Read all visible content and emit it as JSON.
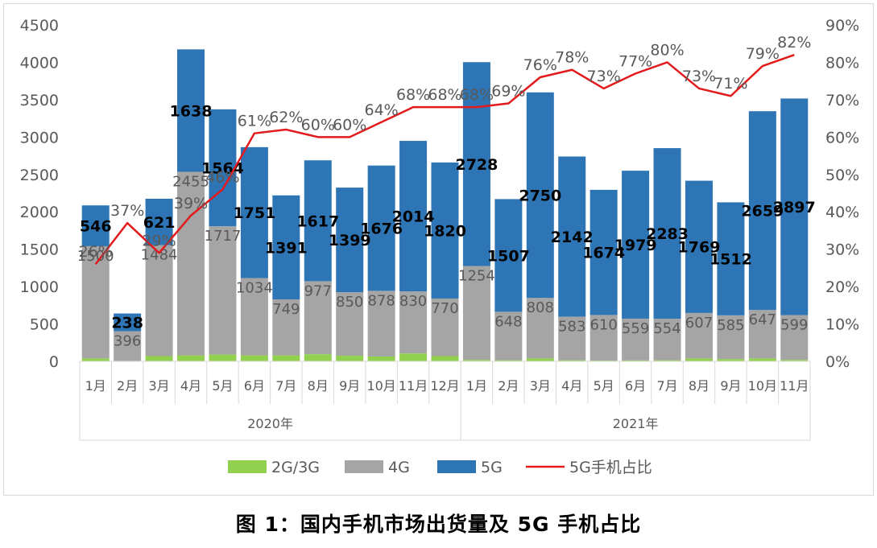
{
  "caption": "图 1：国内手机市场出货量及 5G 手机占比",
  "chart_data": {
    "type": "bar",
    "stacked": true,
    "categories": [
      "1月",
      "2月",
      "3月",
      "4月",
      "5月",
      "6月",
      "7月",
      "8月",
      "9月",
      "10月",
      "11月",
      "12月",
      "1月",
      "2月",
      "3月",
      "4月",
      "5月",
      "6月",
      "7月",
      "8月",
      "9月",
      "10月",
      "11月"
    ],
    "groups": [
      {
        "label": "2020年",
        "count": 12
      },
      {
        "label": "2021年",
        "count": 11
      }
    ],
    "series": [
      {
        "name": "2G/3G",
        "color": "#92d050",
        "values": [
          40,
          6,
          70,
          80,
          90,
          80,
          80,
          95,
          75,
          65,
          105,
          70,
          20,
          15,
          40,
          15,
          10,
          12,
          15,
          40,
          30,
          40,
          20
        ]
      },
      {
        "name": "4G",
        "color": "#a5a5a5",
        "values": [
          1500,
          396,
          1484,
          2455,
          1717,
          1034,
          749,
          977,
          850,
          878,
          830,
          770,
          1254,
          648,
          808,
          583,
          610,
          559,
          554,
          607,
          585,
          647,
          599
        ]
      },
      {
        "name": "5G",
        "color": "#2e75b6",
        "values": [
          546,
          238,
          621,
          1638,
          1564,
          1751,
          1391,
          1617,
          1399,
          1676,
          2014,
          1820,
          2728,
          1507,
          2750,
          2142,
          1674,
          1979,
          2283,
          1769,
          1512,
          2659,
          2897
        ]
      }
    ],
    "line": {
      "name": "5G手机占比",
      "color": "#e31a1c",
      "values": [
        26,
        37,
        29,
        39,
        46,
        61,
        62,
        60,
        60,
        64,
        68,
        68,
        68,
        69,
        76,
        78,
        73,
        77,
        80,
        73,
        71,
        79,
        82
      ],
      "labels": [
        "26%",
        "37%",
        "29%",
        "39%",
        "46%",
        "61%",
        "62%",
        "60%",
        "60%",
        "64%",
        "68%",
        "68%",
        "68%",
        "69%",
        "76%",
        "78%",
        "73%",
        "77%",
        "80%",
        "73%",
        "71%",
        "79%",
        "82%"
      ]
    },
    "y_left": {
      "min": 0,
      "max": 4500,
      "step": 500,
      "ticks": [
        "0",
        "500",
        "1000",
        "1500",
        "2000",
        "2500",
        "3000",
        "3500",
        "4000",
        "4500"
      ]
    },
    "y_right": {
      "min": 0,
      "max": 90,
      "step": 10,
      "ticks": [
        "0%",
        "10%",
        "20%",
        "30%",
        "40%",
        "50%",
        "60%",
        "70%",
        "80%",
        "90%"
      ]
    },
    "grid": false,
    "legend_position": "bottom",
    "legend": [
      "2G/3G",
      "4G",
      "5G",
      "5G手机占比"
    ]
  }
}
